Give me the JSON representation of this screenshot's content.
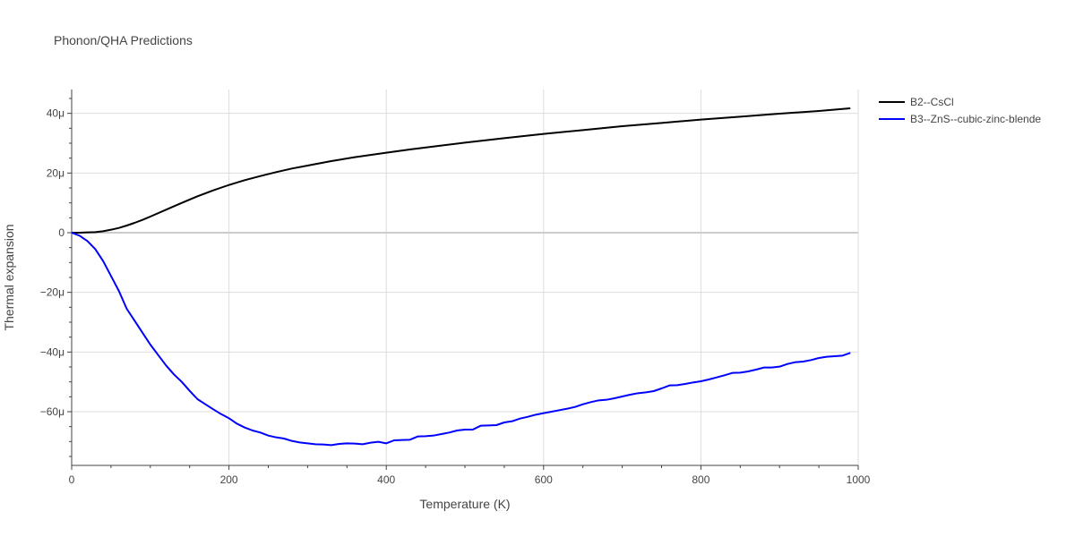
{
  "chart_data": {
    "type": "line",
    "title": "Phonon/QHA Predictions",
    "xlabel": "Temperature (K)",
    "ylabel": "Thermal expansion",
    "xlim": [
      0,
      1000
    ],
    "ylim": [
      -78,
      48
    ],
    "x_ticks": [
      0,
      200,
      400,
      600,
      800,
      1000
    ],
    "x_tick_labels": [
      "0",
      "200",
      "400",
      "600",
      "800",
      "1000"
    ],
    "y_ticks": [
      -60,
      -40,
      -20,
      0,
      20,
      40
    ],
    "y_tick_labels": [
      "−60μ",
      "−40μ",
      "−20μ",
      "0",
      "20μ",
      "40μ"
    ],
    "grid": true,
    "legend_position": "top-right",
    "series": [
      {
        "name": "B2--CsCl",
        "color": "#000000",
        "x": [
          0,
          10,
          20,
          30,
          40,
          50,
          60,
          70,
          80,
          90,
          100,
          120,
          140,
          160,
          180,
          200,
          220,
          240,
          260,
          280,
          300,
          330,
          360,
          400,
          430,
          470,
          500,
          550,
          600,
          650,
          700,
          750,
          800,
          850,
          900,
          950,
          990
        ],
        "y": [
          0,
          0,
          0.1,
          0.2,
          0.5,
          1.0,
          1.6,
          2.4,
          3.3,
          4.3,
          5.4,
          7.7,
          10.0,
          12.2,
          14.2,
          16.0,
          17.6,
          19.0,
          20.3,
          21.5,
          22.5,
          24.0,
          25.3,
          26.8,
          27.9,
          29.2,
          30.2,
          31.7,
          33.1,
          34.4,
          35.7,
          36.8,
          37.9,
          38.9,
          39.9,
          40.8,
          41.7
        ]
      },
      {
        "name": "B3--ZnS--cubic-zinc-blende",
        "color": "#0000ff",
        "x": [
          0,
          10,
          20,
          30,
          40,
          50,
          60,
          70,
          80,
          90,
          100,
          110,
          120,
          130,
          140,
          150,
          160,
          170,
          180,
          190,
          200,
          210,
          220,
          230,
          240,
          250,
          260,
          270,
          280,
          290,
          300,
          310,
          320,
          330,
          340,
          350,
          360,
          370,
          380,
          390,
          400,
          410,
          420,
          430,
          440,
          450,
          460,
          470,
          480,
          490,
          500,
          510,
          520,
          530,
          540,
          550,
          560,
          570,
          580,
          590,
          600,
          610,
          620,
          630,
          640,
          650,
          660,
          670,
          680,
          690,
          700,
          710,
          720,
          730,
          740,
          750,
          760,
          770,
          780,
          790,
          800,
          810,
          820,
          830,
          840,
          850,
          860,
          870,
          880,
          890,
          900,
          910,
          920,
          930,
          940,
          950,
          960,
          970,
          980,
          990
        ],
        "y": [
          0,
          -1.0,
          -2.8,
          -5.5,
          -9.5,
          -14.5,
          -19.5,
          -25.5,
          -29.5,
          -33.5,
          -37.5,
          -41.0,
          -44.5,
          -47.5,
          -50.0,
          -53.0,
          -55.8,
          -57.5,
          -59.2,
          -60.8,
          -62.2,
          -64.0,
          -65.3,
          -66.3,
          -67.0,
          -68.0,
          -68.6,
          -69.0,
          -69.8,
          -70.3,
          -70.6,
          -70.9,
          -71.0,
          -71.2,
          -70.8,
          -70.6,
          -70.7,
          -70.9,
          -70.4,
          -70.1,
          -70.6,
          -69.6,
          -69.5,
          -69.4,
          -68.3,
          -68.2,
          -68.0,
          -67.5,
          -67.0,
          -66.3,
          -66.0,
          -66.0,
          -64.7,
          -64.6,
          -64.5,
          -63.6,
          -63.2,
          -62.3,
          -61.7,
          -61.0,
          -60.5,
          -60.0,
          -59.5,
          -59.0,
          -58.4,
          -57.5,
          -56.8,
          -56.2,
          -56.0,
          -55.5,
          -54.9,
          -54.3,
          -53.8,
          -53.5,
          -53.1,
          -52.2,
          -51.2,
          -51.1,
          -50.7,
          -50.2,
          -49.8,
          -49.2,
          -48.5,
          -47.8,
          -47.0,
          -46.9,
          -46.5,
          -45.9,
          -45.2,
          -45.2,
          -44.9,
          -44.0,
          -43.4,
          -43.2,
          -42.7,
          -42.0,
          -41.6,
          -41.4,
          -41.2,
          -40.3
        ]
      }
    ]
  }
}
